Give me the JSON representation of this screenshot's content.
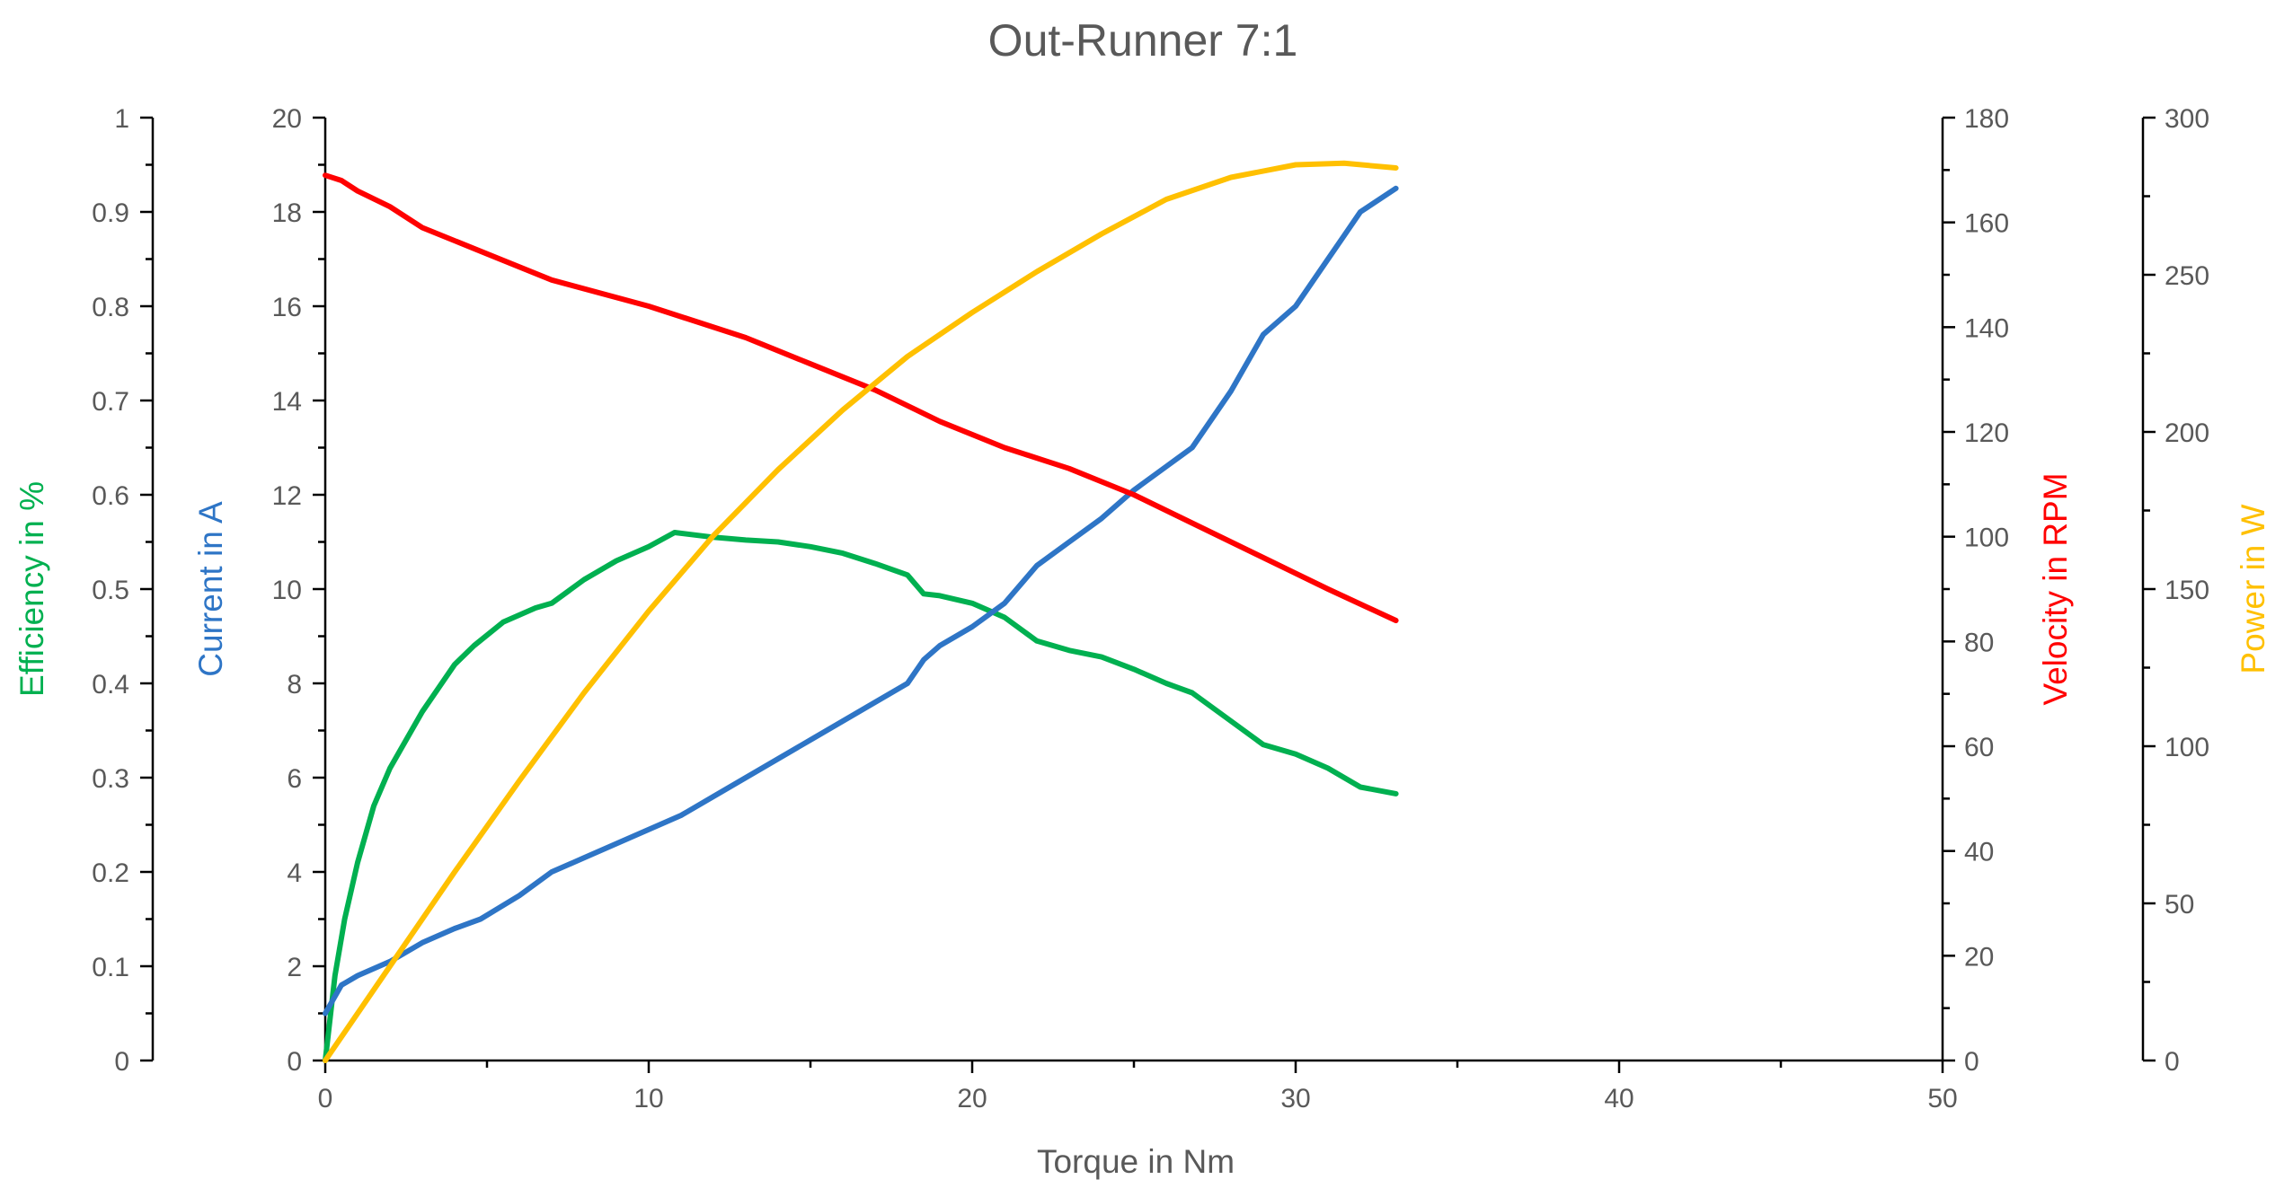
{
  "chart_data": {
    "type": "line",
    "title": "Out-Runner 7:1",
    "grid": false,
    "x_axis": {
      "label": "Torque in Nm",
      "range": [
        0,
        50
      ],
      "ticks": [
        0,
        10,
        20,
        30,
        40,
        50
      ],
      "tick_labels": [
        "0",
        "10",
        "20",
        "30",
        "40",
        "50"
      ]
    },
    "y_axes": [
      {
        "id": "efficiency",
        "label": "Efficiency in %",
        "color": "#00B050",
        "range": [
          0,
          1
        ],
        "ticks": [
          0,
          0.1,
          0.2,
          0.3,
          0.4,
          0.5,
          0.6,
          0.7,
          0.8,
          0.9,
          1
        ],
        "tick_labels": [
          "0",
          "0.1",
          "0.2",
          "0.3",
          "0.4",
          "0.5",
          "0.6",
          "0.7",
          "0.8",
          "0.9",
          "1"
        ]
      },
      {
        "id": "current",
        "label": "Current in A",
        "color": "#2E75C6",
        "range": [
          0,
          20
        ],
        "ticks": [
          0,
          2,
          4,
          6,
          8,
          10,
          12,
          14,
          16,
          18,
          20
        ],
        "tick_labels": [
          "0",
          "2",
          "4",
          "6",
          "8",
          "10",
          "12",
          "14",
          "16",
          "18",
          "20"
        ]
      },
      {
        "id": "velocity",
        "label": "Velocity in RPM",
        "color": "#FF0000",
        "range": [
          0,
          180
        ],
        "ticks": [
          0,
          20,
          40,
          60,
          80,
          100,
          120,
          140,
          160,
          180
        ],
        "tick_labels": [
          "0",
          "20",
          "40",
          "60",
          "80",
          "100",
          "120",
          "140",
          "160",
          "180"
        ]
      },
      {
        "id": "power",
        "label": "Power in W",
        "color": "#FFC000",
        "range": [
          0,
          300
        ],
        "ticks": [
          0,
          50,
          100,
          150,
          200,
          250,
          300
        ],
        "tick_labels": [
          "0",
          "50",
          "100",
          "150",
          "200",
          "250",
          "300"
        ]
      }
    ],
    "series": [
      {
        "axis": "efficiency",
        "color": "#00B050",
        "x": [
          0,
          0.3,
          0.6,
          1,
          1.5,
          2,
          3,
          4,
          4.6,
          5.5,
          6.5,
          7,
          8,
          9,
          10,
          10.8,
          12,
          13,
          14,
          15,
          16,
          17,
          18,
          18.5,
          19,
          20,
          21,
          22,
          23,
          24,
          25,
          26,
          26.8,
          28,
          29,
          30,
          31,
          32,
          33.1
        ],
        "y": [
          0,
          0.09,
          0.15,
          0.21,
          0.27,
          0.31,
          0.37,
          0.42,
          0.44,
          0.465,
          0.48,
          0.485,
          0.51,
          0.53,
          0.545,
          0.56,
          0.555,
          0.552,
          0.55,
          0.545,
          0.538,
          0.527,
          0.515,
          0.495,
          0.493,
          0.485,
          0.47,
          0.445,
          0.435,
          0.428,
          0.415,
          0.4,
          0.39,
          0.36,
          0.335,
          0.325,
          0.31,
          0.29,
          0.283
        ]
      },
      {
        "axis": "current",
        "color": "#2E75C6",
        "x": [
          0,
          0.5,
          1,
          2,
          3,
          4,
          4.8,
          6,
          7,
          8,
          9,
          10,
          11,
          12,
          13,
          14,
          15,
          16,
          17,
          18,
          18.5,
          19,
          20,
          21,
          22,
          23,
          24,
          25,
          26,
          26.8,
          28,
          29,
          30,
          31,
          31.5,
          32,
          33.1
        ],
        "y": [
          1,
          1.6,
          1.8,
          2.1,
          2.5,
          2.8,
          3.0,
          3.5,
          4.0,
          4.3,
          4.6,
          4.9,
          5.2,
          5.6,
          6.0,
          6.4,
          6.8,
          7.2,
          7.6,
          8.0,
          8.5,
          8.8,
          9.2,
          9.7,
          10.5,
          11.0,
          11.5,
          12.1,
          12.6,
          13.0,
          14.2,
          15.4,
          16.0,
          17.0,
          17.5,
          18.0,
          18.5
        ]
      },
      {
        "axis": "velocity",
        "color": "#FF0000",
        "x": [
          0,
          0.5,
          1,
          2,
          3,
          5,
          7,
          10,
          13,
          15,
          17,
          19,
          21,
          23,
          25,
          27,
          29,
          31,
          33.1
        ],
        "y": [
          169,
          168,
          166,
          163,
          159,
          154,
          149,
          144,
          138,
          133,
          128,
          122,
          117,
          113,
          108,
          102,
          96,
          90,
          84
        ]
      },
      {
        "axis": "power",
        "color": "#FFC000",
        "x": [
          0,
          2,
          4,
          6,
          8,
          10,
          12,
          14,
          16,
          18,
          20,
          22,
          24,
          26,
          28,
          30,
          31.5,
          33.1
        ],
        "y": [
          0,
          30,
          60,
          89,
          117,
          143,
          167,
          188,
          207,
          224,
          238,
          251,
          263,
          274,
          281,
          285,
          285.5,
          284
        ]
      }
    ]
  }
}
